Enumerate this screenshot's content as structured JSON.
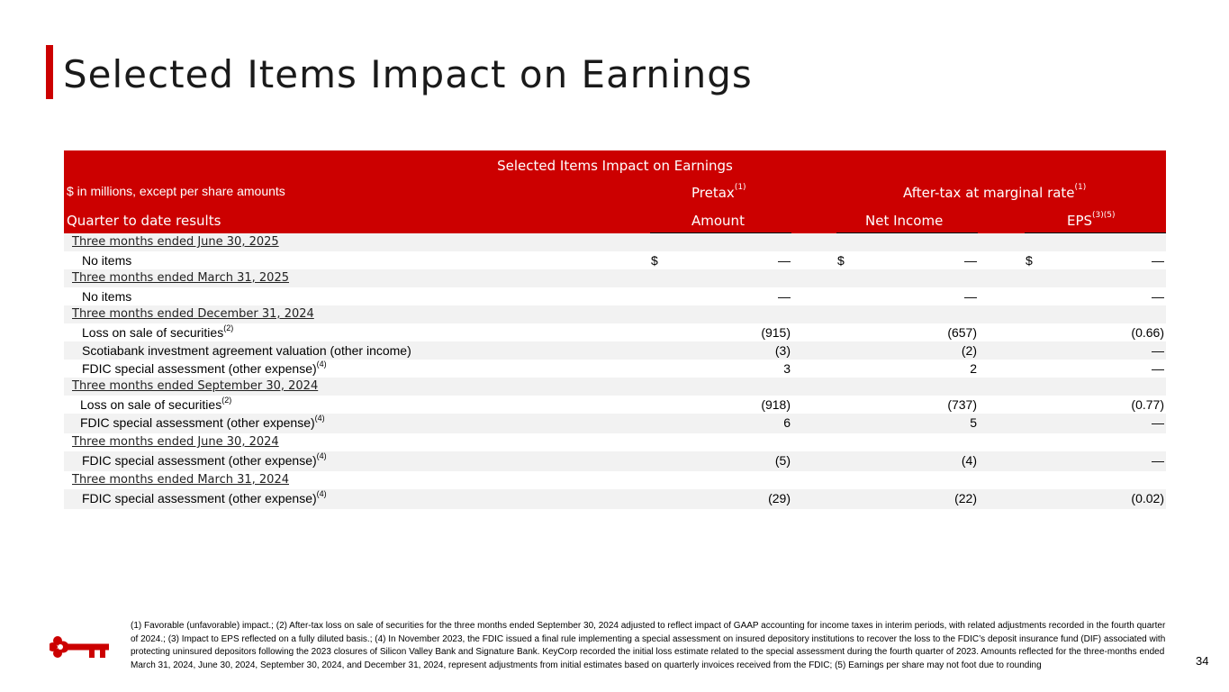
{
  "page_title": "Selected Items Impact on Earnings",
  "table": {
    "title": "Selected Items Impact on Earnings",
    "units_label": "$ in millions, except per share amounts",
    "pretax_label": "Pretax",
    "pretax_sup": "(1)",
    "aftertax_label": "After-tax at marginal rate",
    "aftertax_sup": "(1)",
    "qtd_label": "Quarter to date results",
    "amount_label": "Amount",
    "net_income_label": "Net Income",
    "eps_label": "EPS",
    "eps_sup": "(3)(5)",
    "dollar": "$",
    "rows": [
      {
        "section": "Three months ended June 30, 2025"
      },
      {
        "label": "No items",
        "pretax": "—",
        "net": "—",
        "eps": "—",
        "dollar": true
      },
      {
        "section": "Three months ended March 31, 2025"
      },
      {
        "label": "No items",
        "pretax": "—",
        "net": "—",
        "eps": "—"
      },
      {
        "section": "Three months ended December 31, 2024"
      },
      {
        "label": "Loss on sale of securities",
        "sup": "(2)",
        "pretax": "(915)",
        "net": "(657)",
        "eps": "(0.66)"
      },
      {
        "label": "Scotiabank investment agreement valuation (other income)",
        "pretax": "(3)",
        "net": "(2)",
        "eps": "—"
      },
      {
        "label": "FDIC special assessment (other expense)",
        "sup": "(4)",
        "pretax": "3",
        "net": "2",
        "eps": "—"
      },
      {
        "section": "Three months ended September 30, 2024"
      },
      {
        "label": "Loss on sale of securities",
        "sup": "(2)",
        "pretax": "(918)",
        "net": "(737)",
        "eps": "(0.77)"
      },
      {
        "label": "FDIC special assessment (other expense)",
        "sup": "(4)",
        "pretax": "6",
        "net": "5",
        "eps": "—"
      },
      {
        "section": "Three months ended June 30, 2024"
      },
      {
        "label": "FDIC special assessment (other expense)",
        "sup": "(4)",
        "pretax": "(5)",
        "net": "(4)",
        "eps": "—"
      },
      {
        "section": "Three months ended March 31, 2024"
      },
      {
        "label": "FDIC special assessment (other expense)",
        "sup": "(4)",
        "pretax": "(29)",
        "net": "(22)",
        "eps": "(0.02)"
      }
    ]
  },
  "footnote": "(1) Favorable (unfavorable) impact.; (2) After-tax loss on sale of securities for the three months ended September 30, 2024 adjusted to reflect impact of GAAP accounting for income taxes in interim periods, with related adjustments recorded in the fourth quarter of 2024.; (3) Impact to EPS reflected on a fully diluted basis.; (4) In November 2023, the FDIC issued a final rule implementing a special assessment on insured depository institutions to recover the loss to the FDIC’s deposit insurance fund (DIF) associated with protecting uninsured depositors following the 2023 closures of Silicon Valley Bank and Signature Bank. KeyCorp recorded the initial loss estimate related to the special assessment during the fourth quarter of 2023. Amounts reflected for the three-months ended March 31, 2024, June 30, 2024, September 30, 2024, and December 31, 2024, represent adjustments from initial estimates based on quarterly invoices received from the FDIC; (5) Earnings per share may not foot due to rounding",
  "page_number": "34",
  "colors": {
    "accent": "#cc0000",
    "shade": "#f2f2f2"
  },
  "logo_icon": "key-logo-icon"
}
